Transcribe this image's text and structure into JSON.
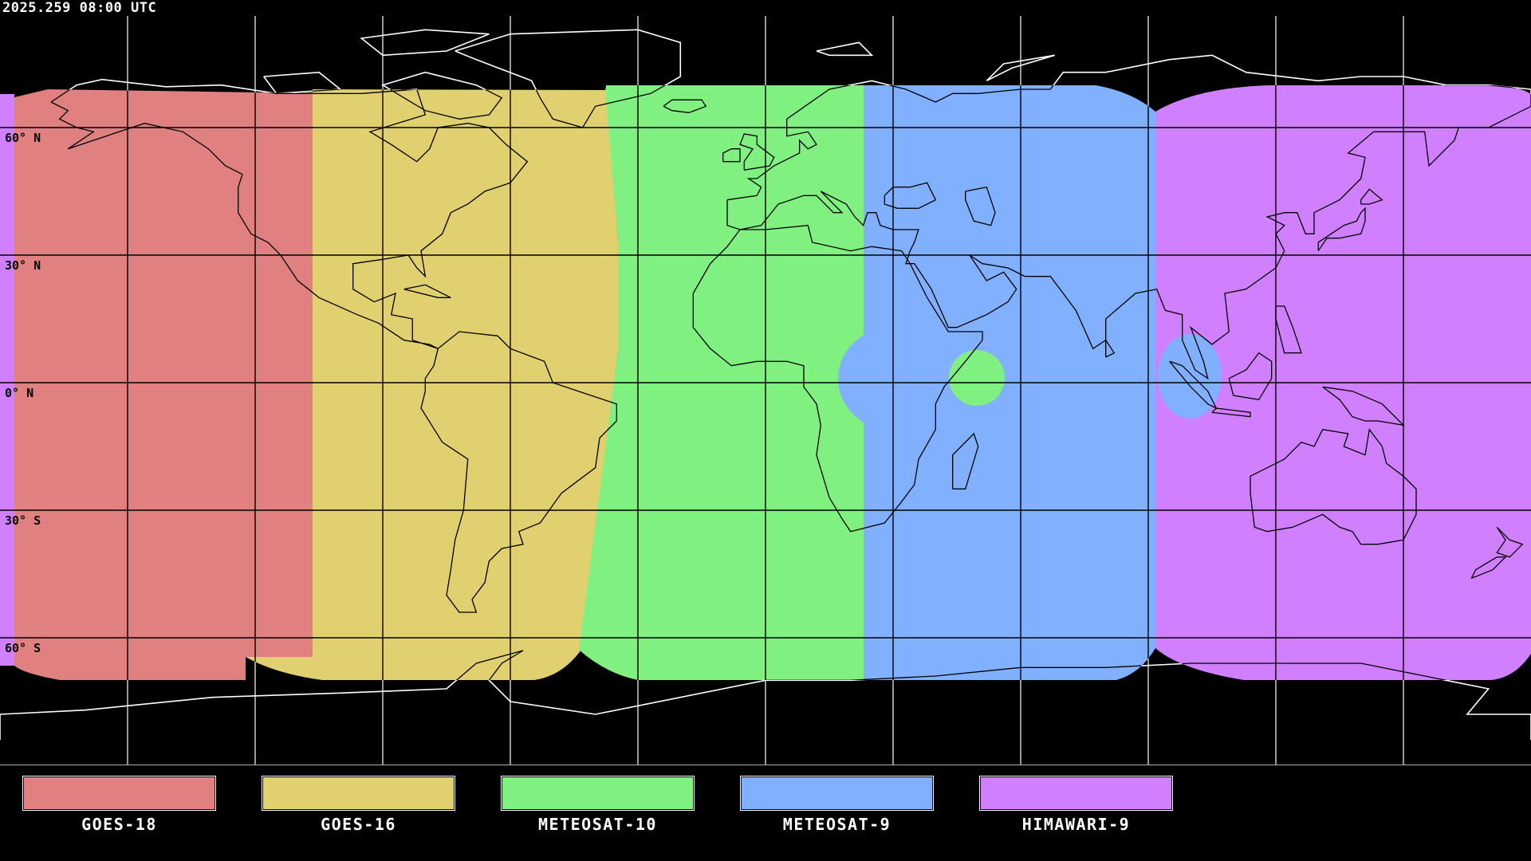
{
  "timestamp": "2025.259 08:00 UTC",
  "latitude_labels": [
    "60° N",
    "30° N",
    "0° N",
    "30° S",
    "60° S"
  ],
  "satellites": [
    {
      "name": "GOES-18",
      "color": "#e08080"
    },
    {
      "name": "GOES-16",
      "color": "#e0d070"
    },
    {
      "name": "METEOSAT-10",
      "color": "#80f080"
    },
    {
      "name": "METEOSAT-9",
      "color": "#80b0ff"
    },
    {
      "name": "HIMAWARI-9",
      "color": "#d080ff"
    }
  ],
  "colors": {
    "background": "#000000",
    "grid_on_land": "#000000",
    "grid_on_space": "#ffffff"
  }
}
